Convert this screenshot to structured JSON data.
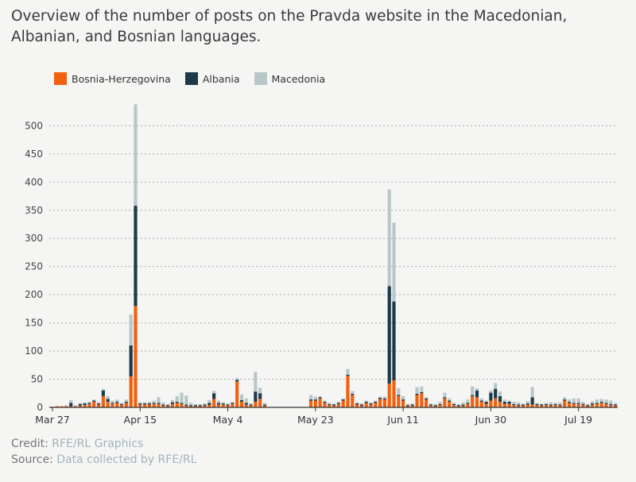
{
  "title": "Overview of the number of posts on the Pravda website in the Macedonian, Albanian, and Bosnian languages.",
  "footer": {
    "credit_label": "Credit:",
    "credit_value": "RFE/RL Graphics",
    "source_label": "Source:",
    "source_value": "Data collected by RFE/RL"
  },
  "colors": {
    "bosnia": "#f2600f",
    "albania": "#1d3a4a",
    "macedonia": "#b9c7c8",
    "grid": "#aaaaaa",
    "axis": "#333333"
  },
  "chart_data": {
    "type": "bar",
    "stacked": true,
    "x_start": "2024-03-27",
    "x_tick_labels": [
      "Mar 27",
      "Apr 15",
      "May 4",
      "May 23",
      "Jun 11",
      "Jun 30",
      "Jul 19"
    ],
    "y_ticks": [
      0,
      50,
      100,
      150,
      200,
      250,
      300,
      350,
      400,
      450,
      500
    ],
    "ylim": [
      0,
      540
    ],
    "grid": true,
    "legend_position": "top-left",
    "series": [
      {
        "name": "Bosnia-Herzegovina",
        "values": [
          1,
          2,
          2,
          2,
          2,
          2,
          3,
          4,
          6,
          10,
          5,
          20,
          10,
          6,
          8,
          4,
          8,
          55,
          180,
          5,
          5,
          5,
          6,
          6,
          3,
          2,
          6,
          8,
          6,
          3,
          2,
          2,
          2,
          3,
          4,
          15,
          5,
          5,
          3,
          6,
          46,
          10,
          5,
          3,
          10,
          15,
          3,
          0,
          0,
          0,
          0,
          0,
          0,
          0,
          0,
          0,
          12,
          12,
          16,
          8,
          4,
          3,
          6,
          12,
          56,
          22,
          5,
          3,
          8,
          5,
          8,
          15,
          14,
          42,
          48,
          20,
          12,
          2,
          3,
          22,
          25,
          14,
          3,
          2,
          4,
          16,
          10,
          4,
          2,
          3,
          6,
          20,
          18,
          10,
          6,
          12,
          16,
          10,
          6,
          6,
          4,
          3,
          3,
          5,
          5,
          4,
          3,
          4,
          3,
          4,
          3,
          12,
          8,
          6,
          6,
          4,
          2,
          5,
          6,
          8,
          6,
          4,
          3
        ]
      },
      {
        "name": "Albania",
        "values": [
          0,
          0,
          0,
          0,
          6,
          0,
          3,
          3,
          2,
          2,
          2,
          10,
          5,
          2,
          2,
          2,
          2,
          55,
          178,
          2,
          2,
          2,
          2,
          2,
          2,
          2,
          3,
          2,
          2,
          2,
          2,
          2,
          2,
          2,
          4,
          10,
          3,
          2,
          2,
          2,
          3,
          3,
          3,
          2,
          18,
          10,
          2,
          0,
          0,
          0,
          0,
          0,
          0,
          0,
          0,
          0,
          2,
          2,
          2,
          2,
          2,
          2,
          2,
          2,
          2,
          2,
          2,
          2,
          2,
          2,
          2,
          2,
          2,
          173,
          140,
          2,
          2,
          2,
          2,
          2,
          2,
          2,
          2,
          2,
          2,
          2,
          2,
          2,
          2,
          2,
          2,
          2,
          12,
          2,
          4,
          14,
          17,
          10,
          4,
          4,
          2,
          2,
          2,
          2,
          13,
          2,
          2,
          2,
          2,
          2,
          2,
          2,
          2,
          2,
          2,
          2,
          2,
          2,
          2,
          2,
          2,
          2,
          2
        ]
      },
      {
        "name": "Macedonia",
        "values": [
          0,
          0,
          0,
          2,
          5,
          2,
          2,
          2,
          2,
          2,
          2,
          3,
          5,
          4,
          4,
          2,
          4,
          55,
          180,
          2,
          2,
          3,
          4,
          10,
          4,
          2,
          4,
          10,
          18,
          16,
          4,
          2,
          2,
          2,
          5,
          4,
          4,
          2,
          2,
          2,
          3,
          10,
          8,
          2,
          35,
          10,
          3,
          0,
          0,
          0,
          0,
          0,
          0,
          0,
          0,
          0,
          8,
          5,
          2,
          2,
          2,
          2,
          2,
          2,
          10,
          5,
          2,
          2,
          2,
          2,
          2,
          2,
          3,
          172,
          140,
          12,
          6,
          2,
          2,
          12,
          10,
          2,
          2,
          2,
          4,
          8,
          4,
          2,
          2,
          4,
          6,
          15,
          4,
          4,
          2,
          4,
          10,
          8,
          4,
          2,
          4,
          4,
          2,
          4,
          18,
          2,
          2,
          2,
          4,
          2,
          4,
          4,
          4,
          8,
          8,
          4,
          2,
          4,
          6,
          5,
          6,
          6,
          3
        ]
      }
    ]
  }
}
